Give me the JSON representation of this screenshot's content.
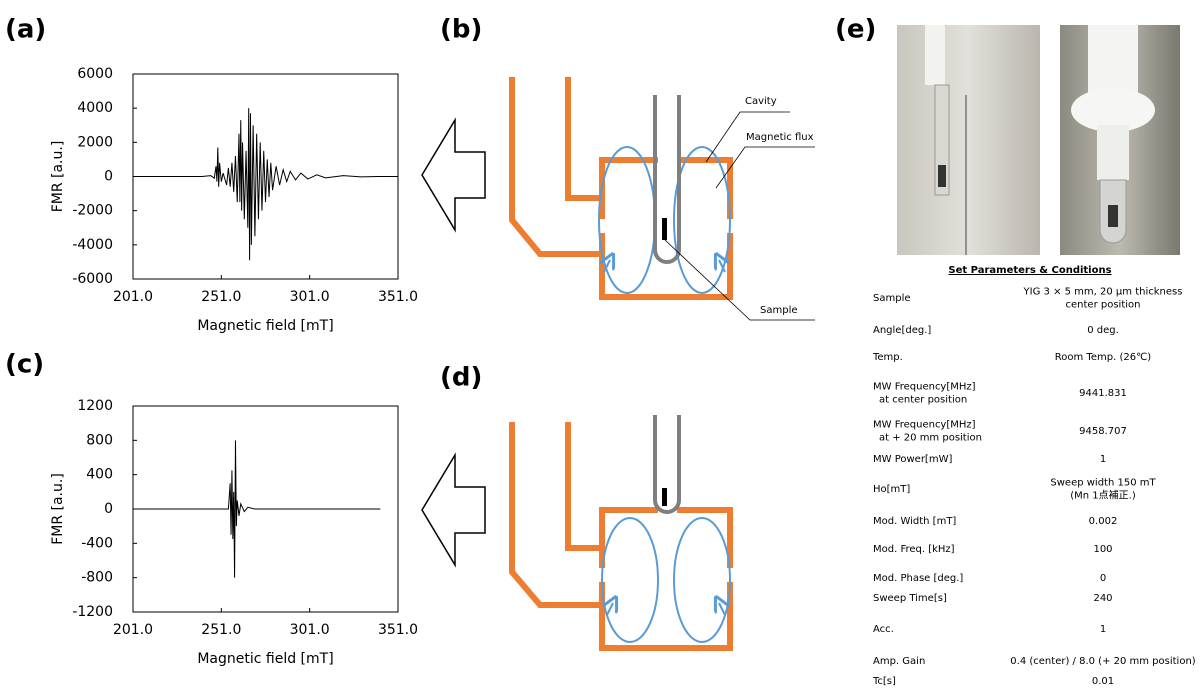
{
  "panels": {
    "a": "(a)",
    "b": "(b)",
    "c": "(c)",
    "d": "(d)",
    "e": "(e)"
  },
  "diagram_labels": {
    "cavity": "Cavity",
    "flux": "Magnetic flux",
    "sample": "Sample"
  },
  "chart_data": [
    {
      "type": "line",
      "color": "#000000",
      "xlabel": "Magnetic field [mT]",
      "ylabel": "FMR [a.u.]",
      "xlim": [
        201,
        351
      ],
      "xticks": [
        {
          "value": 201,
          "label": "201.0"
        },
        {
          "value": 251,
          "label": "251.0"
        },
        {
          "value": 301,
          "label": "301.0"
        },
        {
          "value": 351,
          "label": "351.0"
        }
      ],
      "ylim": [
        -6000,
        6000
      ],
      "yticks": [
        -6000,
        -4000,
        -2000,
        0,
        2000,
        4000,
        6000
      ],
      "x": [
        201,
        240,
        245,
        247,
        248,
        248.5,
        249,
        249.5,
        250,
        251,
        252,
        254,
        255,
        256,
        257,
        258,
        259,
        260,
        261,
        261.5,
        262,
        262.5,
        263,
        264,
        265,
        266,
        266.5,
        267,
        267.5,
        268,
        269,
        270,
        271,
        272,
        273,
        274,
        275,
        276,
        277,
        278,
        279,
        280,
        282,
        284,
        286,
        288,
        290,
        293,
        296,
        300,
        305,
        310,
        320,
        330,
        340,
        351
      ],
      "values": [
        0,
        0,
        50,
        -100,
        600,
        -300,
        1700,
        -600,
        800,
        -300,
        200,
        -500,
        500,
        -600,
        800,
        -900,
        1200,
        -1500,
        2500,
        -1500,
        3300,
        -2000,
        2000,
        -2500,
        1500,
        -3000,
        4000,
        -4900,
        3700,
        -4000,
        3000,
        -3500,
        2500,
        -2500,
        2000,
        -2000,
        1500,
        -1500,
        1000,
        -1200,
        800,
        -800,
        600,
        -500,
        400,
        -300,
        300,
        -200,
        200,
        -150,
        100,
        -80,
        50,
        -20,
        0,
        0
      ]
    },
    {
      "type": "line",
      "color": "#000000",
      "xlabel": "Magnetic field [mT]",
      "ylabel": "FMR [a.u.]",
      "xlim": [
        201,
        351
      ],
      "xticks": [
        {
          "value": 201,
          "label": "201.0"
        },
        {
          "value": 251,
          "label": "251.0"
        },
        {
          "value": 301,
          "label": "301.0"
        },
        {
          "value": 351,
          "label": "351.0"
        }
      ],
      "ylim": [
        -1200,
        1200
      ],
      "yticks": [
        -1200,
        -800,
        -400,
        0,
        400,
        800,
        1200
      ],
      "x": [
        201,
        255,
        256,
        256.5,
        257,
        257.5,
        258,
        258.5,
        259,
        259.5,
        260,
        261,
        262,
        264,
        266,
        270,
        341
      ],
      "values": [
        0,
        0,
        300,
        -300,
        450,
        -350,
        200,
        -800,
        800,
        -200,
        100,
        -80,
        60,
        -30,
        20,
        0,
        0
      ]
    }
  ],
  "table": {
    "title": "Set Parameters & Conditions",
    "rows": [
      {
        "label": [
          "Sample"
        ],
        "value": [
          "YIG 3 × 5 mm, 20 μm thickness",
          "center position"
        ]
      },
      {
        "label": [
          "Angle[deg.]"
        ],
        "value": [
          "0 deg."
        ]
      },
      {
        "label": [
          "Temp."
        ],
        "value": [
          "Room Temp. (26℃)"
        ]
      },
      {
        "label": [
          "MW Frequency[MHz]",
          "at center position"
        ],
        "value": [
          "9441.831"
        ]
      },
      {
        "label": [
          "MW Frequency[MHz]",
          "at + 20 mm position"
        ],
        "value": [
          "9458.707"
        ]
      },
      {
        "label": [
          "MW Power[mW]"
        ],
        "value": [
          "1"
        ]
      },
      {
        "label": [
          "Ho[mT]"
        ],
        "value": [
          "Sweep width 150 mT",
          "(Mn 1点補正.)"
        ]
      },
      {
        "label": [
          "Mod. Width [mT]"
        ],
        "value": [
          "0.002"
        ]
      },
      {
        "label": [
          "Mod. Freq. [kHz]"
        ],
        "value": [
          "100"
        ]
      },
      {
        "label": [
          "Mod. Phase [deg.]"
        ],
        "value": [
          "0"
        ]
      },
      {
        "label": [
          "Sweep Time[s]"
        ],
        "value": [
          "240"
        ]
      },
      {
        "label": [
          "Acc."
        ],
        "value": [
          "1"
        ]
      },
      {
        "label": [
          "Amp. Gain"
        ],
        "value": [
          "0.4 (center) / 8.0 (+ 20 mm position)"
        ]
      },
      {
        "label": [
          "Tc[s]"
        ],
        "value": [
          "0.01"
        ]
      }
    ]
  }
}
